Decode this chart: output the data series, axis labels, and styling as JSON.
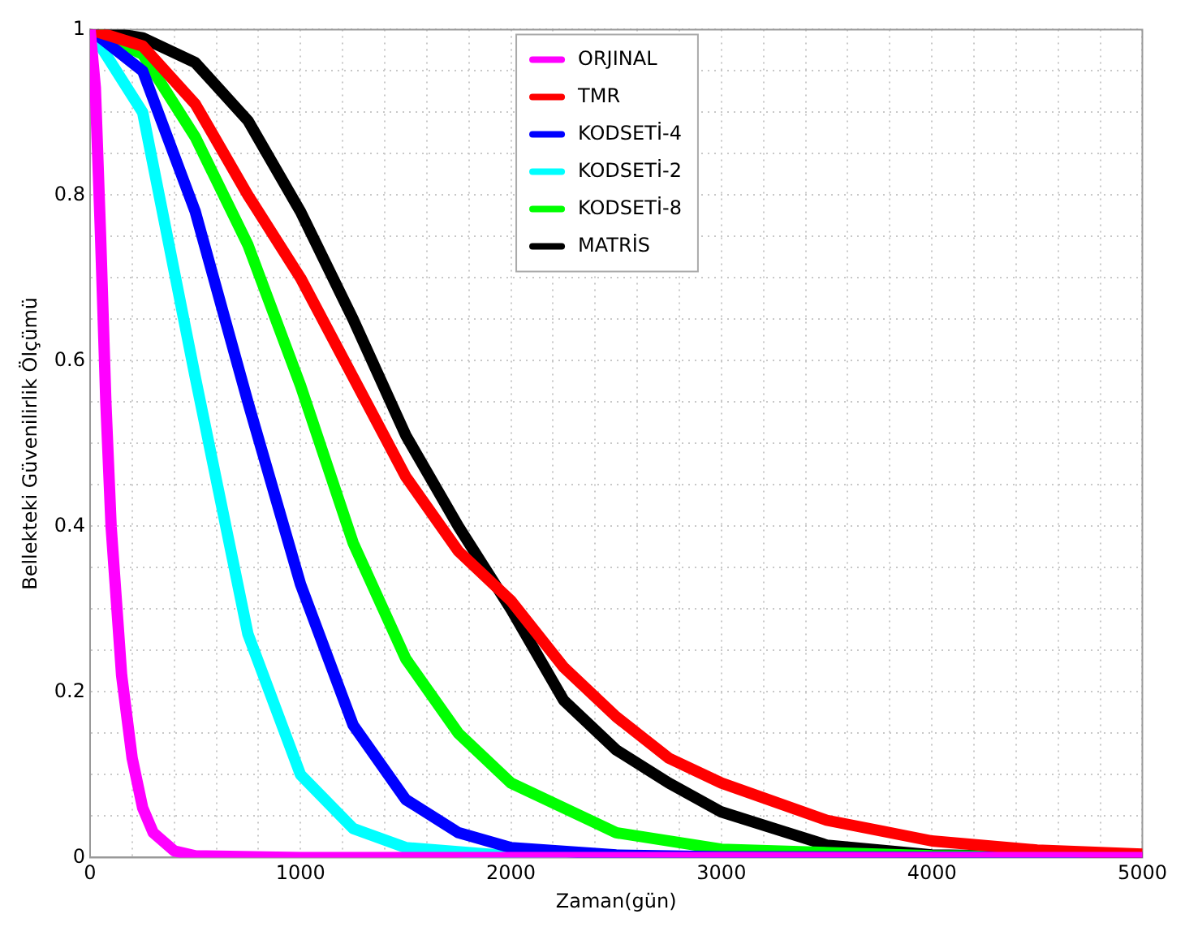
{
  "chart_data": {
    "type": "line",
    "xlabel": "Zaman(gün)",
    "ylabel": "Bellekteki Güvenilirlik Ölçümü",
    "xlim": [
      0,
      5000
    ],
    "ylim": [
      0,
      1
    ],
    "xticks": [
      0,
      {
        "value": 200,
        "label": null
      },
      {
        "value": 400,
        "label": null
      },
      {
        "value": 600,
        "label": null
      },
      {
        "value": 800,
        "label": null
      },
      1000,
      {
        "value": 1200,
        "label": null
      },
      {
        "value": 1400,
        "label": null
      },
      {
        "value": 1600,
        "label": null
      },
      {
        "value": 1800,
        "label": null
      },
      2000,
      {
        "value": 2200,
        "label": null
      },
      {
        "value": 2400,
        "label": null
      },
      {
        "value": 2600,
        "label": null
      },
      {
        "value": 2800,
        "label": null
      },
      3000,
      {
        "value": 3200,
        "label": null
      },
      {
        "value": 3400,
        "label": null
      },
      {
        "value": 3600,
        "label": null
      },
      {
        "value": 3800,
        "label": null
      },
      4000,
      {
        "value": 4200,
        "label": null
      },
      {
        "value": 4400,
        "label": null
      },
      {
        "value": 4600,
        "label": null
      },
      {
        "value": 4800,
        "label": null
      },
      5000
    ],
    "yticks": [
      0,
      {
        "value": 0.05,
        "label": null
      },
      {
        "value": 0.1,
        "label": null
      },
      {
        "value": 0.15,
        "label": null
      },
      0.2,
      {
        "value": 0.25,
        "label": null
      },
      {
        "value": 0.3,
        "label": null
      },
      {
        "value": 0.35,
        "label": null
      },
      0.4,
      {
        "value": 0.45,
        "label": null
      },
      {
        "value": 0.5,
        "label": null
      },
      {
        "value": 0.55,
        "label": null
      },
      0.6,
      {
        "value": 0.65,
        "label": null
      },
      {
        "value": 0.7,
        "label": null
      },
      {
        "value": 0.75,
        "label": null
      },
      0.8,
      {
        "value": 0.85,
        "label": null
      },
      {
        "value": 0.9,
        "label": null
      },
      {
        "value": 0.95,
        "label": null
      },
      1
    ],
    "grid": true,
    "legend": "top",
    "line_style": "solid",
    "series": [
      {
        "name": "ORJINAL",
        "color": "#ff00ff",
        "x": [
          0,
          25,
          50,
          75,
          100,
          150,
          200,
          250,
          300,
          400,
          500,
          1000,
          5000
        ],
        "values": [
          1,
          0.93,
          0.75,
          0.55,
          0.4,
          0.22,
          0.12,
          0.06,
          0.03,
          0.008,
          0.002,
          0,
          0
        ]
      },
      {
        "name": "TMR",
        "color": "#ff0000",
        "x": [
          0,
          250,
          500,
          750,
          1000,
          1250,
          1500,
          1750,
          2000,
          2250,
          2500,
          2750,
          3000,
          3500,
          4000,
          4500,
          5000
        ],
        "values": [
          1,
          0.98,
          0.91,
          0.8,
          0.7,
          0.58,
          0.46,
          0.37,
          0.31,
          0.23,
          0.17,
          0.12,
          0.09,
          0.045,
          0.02,
          0.009,
          0.004
        ]
      },
      {
        "name": "KODSETİ-4",
        "color": "#0000ff",
        "x": [
          0,
          250,
          500,
          750,
          1000,
          1250,
          1500,
          1750,
          2000,
          2500,
          3000,
          5000
        ],
        "values": [
          1,
          0.95,
          0.78,
          0.55,
          0.33,
          0.16,
          0.07,
          0.03,
          0.012,
          0.003,
          0.001,
          0
        ]
      },
      {
        "name": "KODSETİ-2",
        "color": "#00ffff",
        "x": [
          0,
          250,
          500,
          750,
          1000,
          1250,
          1500,
          2000,
          3000,
          5000
        ],
        "values": [
          1,
          0.9,
          0.58,
          0.27,
          0.1,
          0.035,
          0.012,
          0.002,
          0,
          0
        ]
      },
      {
        "name": "KODSETİ-8",
        "color": "#00ff00",
        "x": [
          0,
          250,
          500,
          750,
          1000,
          1250,
          1500,
          1750,
          2000,
          2500,
          3000,
          4000,
          5000
        ],
        "values": [
          1,
          0.97,
          0.87,
          0.74,
          0.57,
          0.38,
          0.24,
          0.15,
          0.09,
          0.03,
          0.01,
          0.002,
          0
        ]
      },
      {
        "name": "MATRİS",
        "color": "#000000",
        "x": [
          0,
          250,
          500,
          750,
          1000,
          1250,
          1500,
          1750,
          2000,
          2250,
          2500,
          2750,
          3000,
          3500,
          4000,
          5000
        ],
        "values": [
          1,
          0.99,
          0.96,
          0.89,
          0.78,
          0.65,
          0.51,
          0.4,
          0.3,
          0.19,
          0.13,
          0.09,
          0.055,
          0.015,
          0.003,
          0
        ]
      }
    ]
  }
}
